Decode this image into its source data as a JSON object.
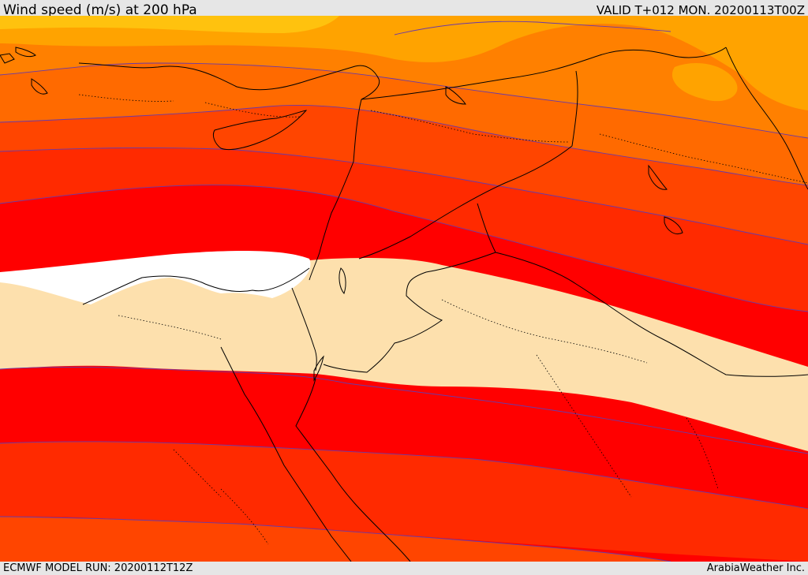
{
  "header": {
    "title": "Wind speed (m/s) at 200 hPa",
    "valid": "VALID T+012 MON. 20200113T00Z"
  },
  "footer": {
    "model_run": "ECMWF MODEL RUN: 20200112T12Z",
    "credit": "ArabiaWeather Inc."
  },
  "colors": {
    "band_lightest": "#ffc20e",
    "band_amber": "#ffa300",
    "band_orange": "#ff8000",
    "band_dark_orange": "#ff6a00",
    "band_red_orange": "#ff4500",
    "band_scarlet": "#ff2a00",
    "band_red": "#ff0000",
    "band_max": "#ffffff",
    "band_min": "#fde0ad",
    "contour_line": "#6a3aa8",
    "coastline": "#000000"
  }
}
